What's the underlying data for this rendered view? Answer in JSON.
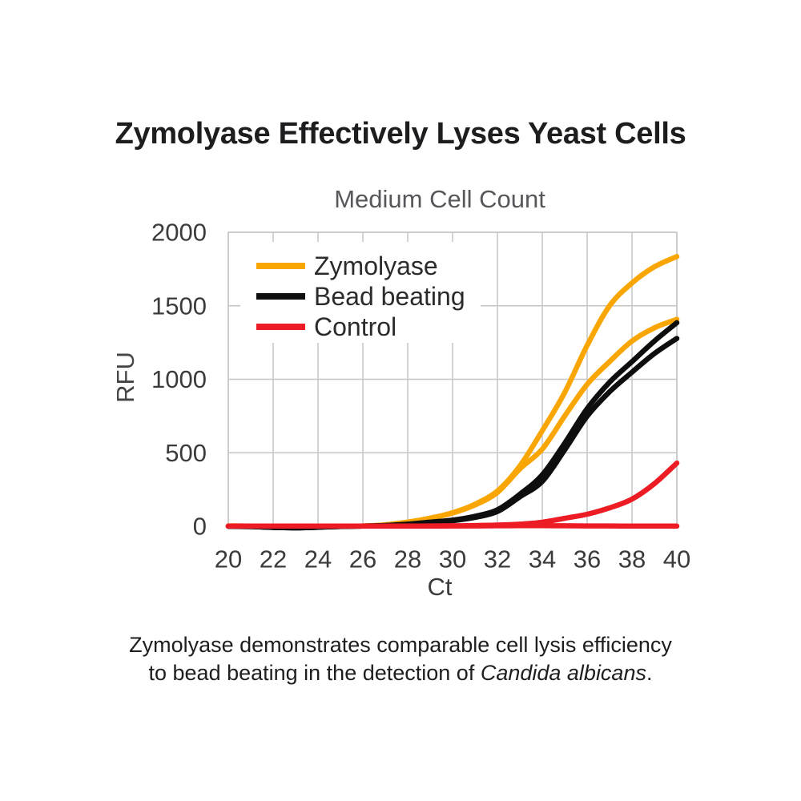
{
  "title": "Zymolyase Effectively Lyses Yeast Cells",
  "colors": {
    "zymolyase": "#F9A602",
    "bead_beating": "#0E0E0E",
    "control": "#ED1C24",
    "grid": "#C5C5C5",
    "plot_border": "#C5C5C5",
    "legend_background": "#FFFFFF"
  },
  "legend": {
    "items": [
      {
        "label": "Zymolyase",
        "color": "#F9A602"
      },
      {
        "label": "Bead beating",
        "color": "#0E0E0E"
      },
      {
        "label": "Control",
        "color": "#ED1C24"
      }
    ]
  },
  "chart_data": {
    "type": "line",
    "title": "Medium Cell Count",
    "xlabel": "Ct",
    "ylabel": "RFU",
    "xlim": [
      20,
      40
    ],
    "ylim": [
      0,
      2000
    ],
    "x_ticks": [
      20,
      22,
      24,
      26,
      28,
      30,
      32,
      34,
      36,
      38,
      40
    ],
    "y_ticks": [
      0,
      500,
      1000,
      1500,
      2000
    ],
    "grid": true,
    "legend_position": "top-left-inside",
    "x": [
      20,
      21,
      22,
      23,
      24,
      25,
      26,
      27,
      28,
      29,
      30,
      31,
      32,
      33,
      34,
      35,
      36,
      37,
      38,
      39,
      40
    ],
    "series": [
      {
        "name": "Zymolyase replicate 1",
        "group": "Zymolyase",
        "color": "#F9A602",
        "values": [
          2,
          1,
          -4,
          -6,
          -3,
          1,
          2,
          10,
          28,
          55,
          92,
          150,
          240,
          410,
          650,
          910,
          1230,
          1500,
          1655,
          1765,
          1835
        ]
      },
      {
        "name": "Zymolyase replicate 2",
        "group": "Zymolyase",
        "color": "#F9A602",
        "values": [
          2,
          1,
          -4,
          -6,
          -3,
          1,
          2,
          10,
          28,
          55,
          90,
          145,
          230,
          390,
          525,
          750,
          965,
          1120,
          1260,
          1350,
          1408
        ]
      },
      {
        "name": "Bead beating replicate 1",
        "group": "Bead beating",
        "color": "#0E0E0E",
        "values": [
          0,
          -2,
          -8,
          -11,
          -7,
          -1,
          1,
          5,
          14,
          28,
          42,
          68,
          112,
          218,
          350,
          565,
          800,
          980,
          1120,
          1260,
          1385
        ]
      },
      {
        "name": "Bead beating replicate 2",
        "group": "Bead beating",
        "color": "#0E0E0E",
        "values": [
          0,
          -2,
          -8,
          -11,
          -7,
          -1,
          1,
          5,
          13,
          26,
          38,
          60,
          100,
          200,
          305,
          520,
          748,
          915,
          1048,
          1175,
          1278
        ]
      },
      {
        "name": "Control replicate 1",
        "group": "Control",
        "color": "#ED1C24",
        "values": [
          1,
          1,
          1,
          1,
          1,
          1,
          1,
          1,
          1,
          2,
          3,
          5,
          8,
          14,
          27,
          54,
          82,
          125,
          185,
          290,
          430
        ]
      },
      {
        "name": "Control replicate 2",
        "group": "Control",
        "color": "#ED1C24",
        "values": [
          1,
          1,
          1,
          1,
          1,
          1,
          1,
          1,
          1,
          1,
          2,
          2,
          3,
          4,
          4,
          3,
          2,
          2,
          1,
          1,
          1
        ]
      }
    ]
  },
  "caption": {
    "line1": "Zymolyase demonstrates comparable cell lysis efficiency",
    "line2_prefix": "to bead beating in the detection of ",
    "line2_italic": "Candida albicans",
    "line2_end": "."
  }
}
